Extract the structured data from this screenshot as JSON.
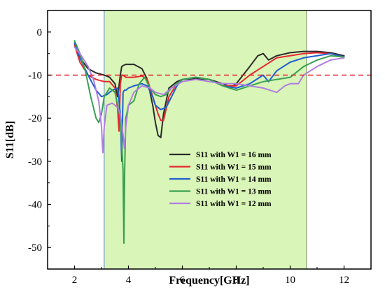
{
  "chart_data": {
    "type": "line",
    "xlabel": "Frequency[GHz]",
    "ylabel": "S11[dB]",
    "xlim": [
      1,
      13
    ],
    "ylim": [
      -55,
      5
    ],
    "xticks": [
      2,
      4,
      6,
      8,
      10,
      12
    ],
    "yticks": [
      0,
      -10,
      -20,
      -30,
      -40,
      -50
    ],
    "grid": false,
    "legend_position": "lower-center",
    "band": {
      "x_start": 3.1,
      "x_end": 10.6,
      "color": "#d9f5b7"
    },
    "reference_line": {
      "y": -10,
      "color": "#e8202a",
      "style": "dashed"
    },
    "series": [
      {
        "name": "S11 with W1 = 16 mm",
        "color": "#2b2b2b",
        "x": [
          2,
          2.2,
          2.5,
          2.8,
          3.1,
          3.3,
          3.5,
          3.6,
          3.7,
          3.75,
          3.8,
          3.9,
          4,
          4.2,
          4.5,
          4.7,
          4.9,
          5,
          5.1,
          5.2,
          5.3,
          5.5,
          5.8,
          6,
          6.5,
          7,
          7.5,
          7.8,
          8,
          8.5,
          8.8,
          9,
          9.2,
          9.5,
          10,
          10.5,
          11,
          11.5,
          12
        ],
        "y": [
          -2.5,
          -6,
          -8.5,
          -9.5,
          -10,
          -10.5,
          -12,
          -15,
          -10,
          -8,
          -7.8,
          -7.5,
          -7.5,
          -7.5,
          -8.5,
          -11,
          -17,
          -21,
          -24,
          -24.5,
          -19,
          -13,
          -11.5,
          -11,
          -10.8,
          -11,
          -12,
          -12.8,
          -12,
          -8,
          -5.5,
          -5,
          -6.5,
          -5.5,
          -4.8,
          -4.5,
          -4.5,
          -4.8,
          -5.5
        ]
      },
      {
        "name": "S11 with W1 = 15 mm",
        "color": "#e8272e",
        "x": [
          2,
          2.2,
          2.5,
          2.8,
          3.1,
          3.3,
          3.5,
          3.6,
          3.65,
          3.7,
          3.75,
          3.8,
          3.9,
          4,
          4.2,
          4.5,
          4.7,
          4.9,
          5,
          5.1,
          5.2,
          5.3,
          5.5,
          5.8,
          6,
          6.5,
          7,
          7.5,
          8,
          8.5,
          9,
          9.5,
          10,
          10.5,
          11,
          11.5,
          12
        ],
        "y": [
          -3,
          -7,
          -10,
          -11,
          -11.5,
          -11.5,
          -13,
          -18,
          -23,
          -12,
          -10,
          -10,
          -10.5,
          -10.5,
          -10.5,
          -10.2,
          -11,
          -15,
          -17,
          -19,
          -20.5,
          -20.5,
          -15,
          -12,
          -11,
          -10.5,
          -11,
          -12.5,
          -12.5,
          -10,
          -8,
          -6,
          -5.5,
          -5,
          -4.8,
          -5,
          -5.8
        ]
      },
      {
        "name": "S11 with W1 = 14 mm",
        "color": "#1f5fd0",
        "x": [
          2,
          2.2,
          2.5,
          2.8,
          3,
          3.2,
          3.4,
          3.6,
          3.7,
          3.75,
          3.8,
          3.85,
          3.9,
          4,
          4.2,
          4.5,
          4.7,
          4.9,
          5,
          5.2,
          5.4,
          5.6,
          5.8,
          6,
          6.5,
          7,
          7.5,
          8,
          8.5,
          9,
          9.2,
          9.5,
          10,
          10.5,
          11,
          11.5,
          12
        ],
        "y": [
          -2.5,
          -6,
          -10,
          -13.5,
          -15,
          -14.5,
          -13.5,
          -13,
          -19,
          -30,
          -14,
          -13.5,
          -13.5,
          -13,
          -12.5,
          -12,
          -12.5,
          -15,
          -17,
          -18,
          -17.5,
          -15,
          -12.5,
          -11,
          -10.5,
          -11,
          -12.5,
          -13,
          -12,
          -10,
          -11.5,
          -9,
          -7,
          -6,
          -5.5,
          -5,
          -5.8
        ]
      },
      {
        "name": "S11 with W1 = 13 mm",
        "color": "#38a052",
        "x": [
          2,
          2.2,
          2.4,
          2.6,
          2.8,
          2.9,
          3,
          3.1,
          3.3,
          3.5,
          3.7,
          3.8,
          3.83,
          3.86,
          3.9,
          4,
          4.2,
          4.4,
          4.6,
          4.8,
          5,
          5.2,
          5.4,
          5.6,
          5.8,
          6,
          6.5,
          7,
          7.5,
          8,
          8.5,
          9,
          9.5,
          10,
          10.5,
          11,
          11.5,
          12
        ],
        "y": [
          -2,
          -5,
          -9,
          -15,
          -20,
          -21,
          -19,
          -15,
          -13,
          -14,
          -20,
          -32,
          -49,
          -32,
          -20,
          -17,
          -16,
          -12,
          -10.5,
          -13,
          -14.5,
          -15,
          -14.5,
          -13,
          -12,
          -11,
          -10.5,
          -11,
          -12.5,
          -13.5,
          -12.5,
          -11.5,
          -11,
          -10.5,
          -8,
          -6.5,
          -5.5,
          -5.8
        ]
      },
      {
        "name": "S11 with W1 = 12 mm",
        "color": "#b07ee2",
        "x": [
          2,
          2.2,
          2.5,
          2.7,
          2.9,
          3,
          3.05,
          3.1,
          3.2,
          3.4,
          3.6,
          3.7,
          3.8,
          3.85,
          3.9,
          4,
          4.2,
          4.5,
          4.8,
          5,
          5.3,
          5.6,
          6,
          6.5,
          7,
          7.5,
          8,
          8.5,
          9,
          9.5,
          9.8,
          10,
          10.3,
          10.5,
          11,
          11.5,
          12
        ],
        "y": [
          -3.5,
          -5,
          -8,
          -11,
          -16,
          -22,
          -28,
          -22,
          -17,
          -16.5,
          -17.5,
          -19,
          -24,
          -27,
          -22,
          -17,
          -14,
          -12.5,
          -13,
          -14,
          -14.5,
          -13,
          -11.5,
          -11,
          -11.5,
          -12,
          -12,
          -12.5,
          -13,
          -14,
          -12.5,
          -12,
          -12,
          -10,
          -8,
          -6.5,
          -6
        ]
      }
    ]
  }
}
